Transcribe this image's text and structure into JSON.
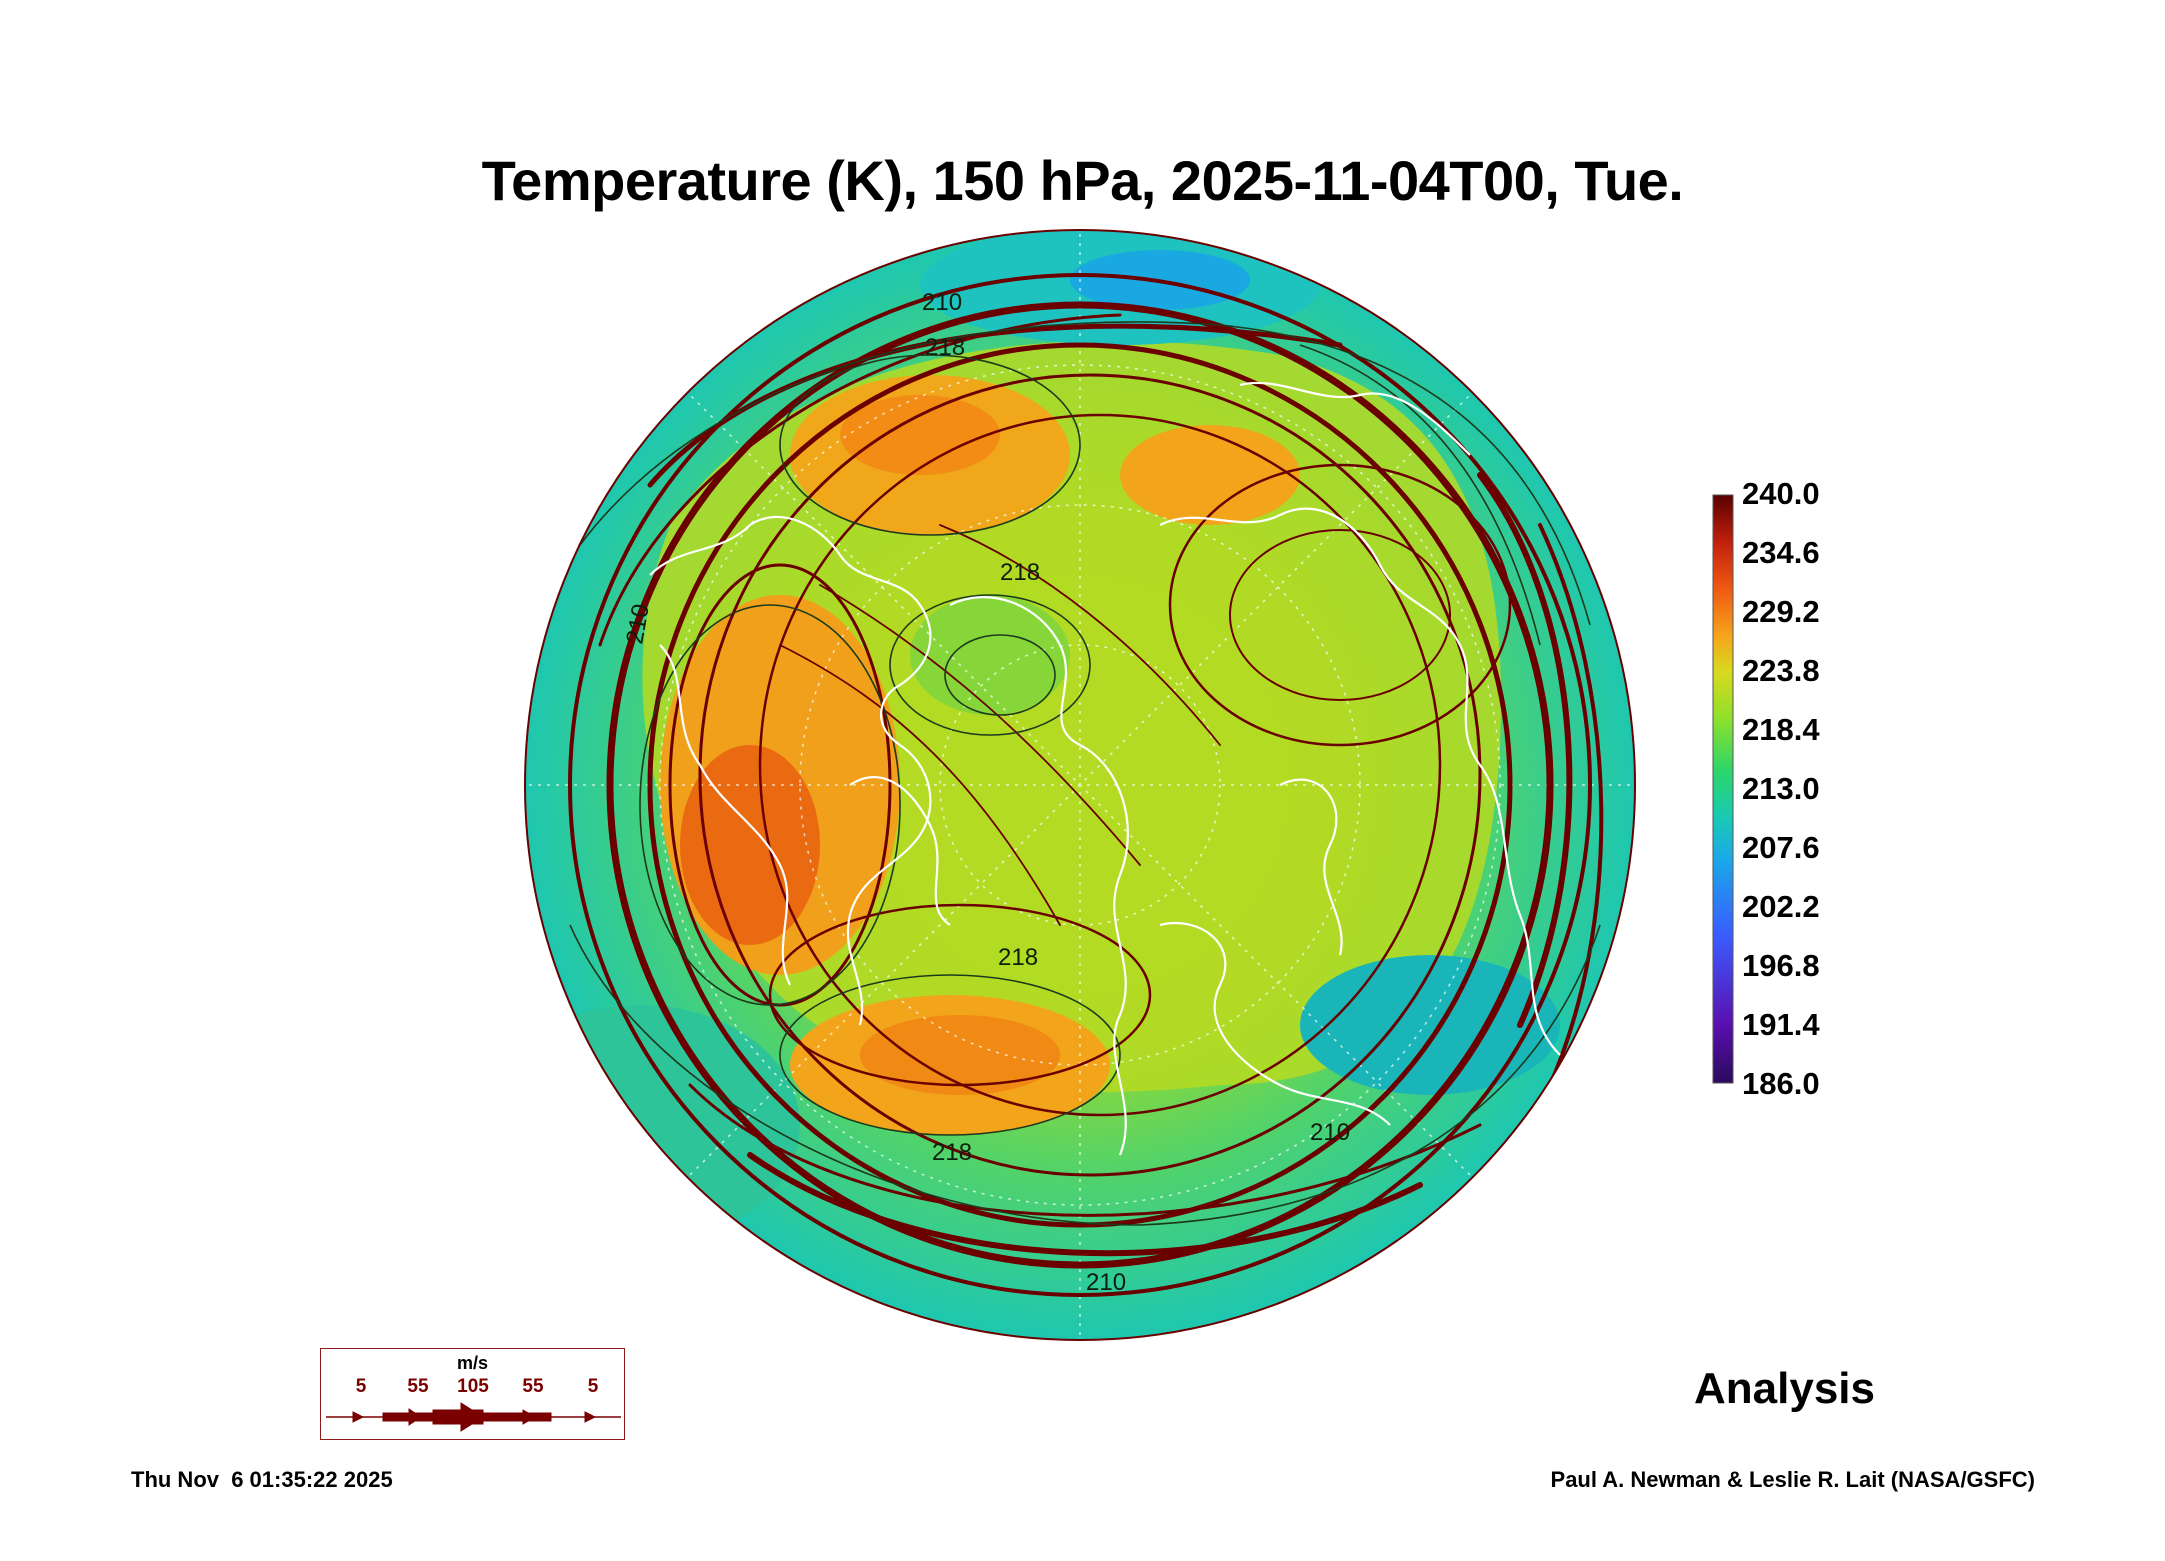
{
  "title": "Temperature (K), 150 hPa, 2025-11-04T00, Tue.",
  "colorbar": {
    "ticks": [
      "240.0",
      "234.6",
      "229.2",
      "223.8",
      "218.4",
      "213.0",
      "207.6",
      "202.2",
      "196.8",
      "191.4",
      "186.0"
    ],
    "colors": [
      "#2a0a5e",
      "#5a0fb0",
      "#3a5cff",
      "#1aa8e8",
      "#19c9b5",
      "#2bd66a",
      "#8fe02a",
      "#d9d91e",
      "#f5a51c",
      "#f05a12",
      "#c0200c",
      "#5a0000"
    ]
  },
  "contour_labels": [
    "210",
    "218",
    "218",
    "218",
    "210",
    "218",
    "210",
    "210"
  ],
  "legend": {
    "unit": "m/s",
    "labels": [
      "5",
      "55",
      "105",
      "55",
      "5"
    ],
    "color": "#7a0000"
  },
  "product": "Analysis",
  "timestamp": "Thu Nov  6 01:35:22 2025",
  "credit": "Paul A. Newman & Leslie R. Lait (NASA/GSFC)"
}
